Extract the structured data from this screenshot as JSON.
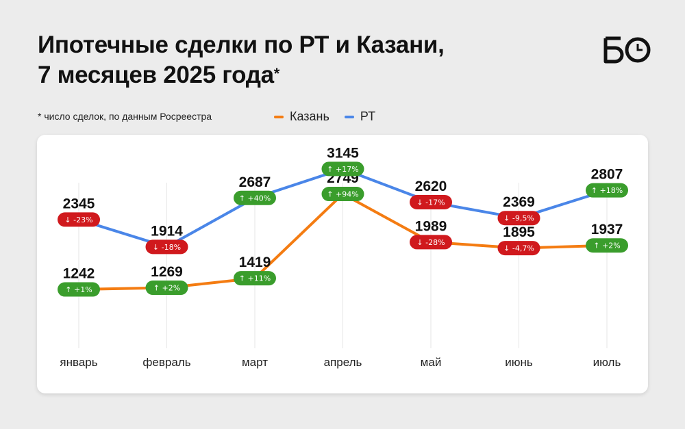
{
  "header": {
    "title_line1": "Ипотечные сделки по РТ и Казани,",
    "title_line2": "7 месяцев 2025 года",
    "title_mark": "*",
    "logo_text": "БО",
    "note": "* число сделок, по данным Росреестра"
  },
  "colors": {
    "kazan": "#f47c12",
    "rt": "#4a86e8",
    "up_badge": "#3a9d2c",
    "down_badge": "#d0191d",
    "gridline": "#e6e6e6"
  },
  "chart_data": {
    "type": "line",
    "title": "Ипотечные сделки по РТ и Казани, 7 месяцев 2025 года",
    "categories": [
      "январь",
      "февраль",
      "март",
      "апрель",
      "май",
      "июнь",
      "июль"
    ],
    "ylim": [
      0,
      3500
    ],
    "grid": "vertical",
    "legend_position": "top",
    "series": [
      {
        "name": "Казань",
        "color": "#f47c12",
        "values": [
          1242,
          1269,
          1419,
          2749,
          1989,
          1895,
          1937
        ],
        "changes": [
          "+1%",
          "+2%",
          "+11%",
          "+94%",
          "-28%",
          "-4,7%",
          "+2%"
        ],
        "directions": [
          "up",
          "up",
          "up",
          "up",
          "down",
          "down",
          "up"
        ]
      },
      {
        "name": "РТ",
        "color": "#4a86e8",
        "values": [
          2345,
          1914,
          2687,
          3145,
          2620,
          2369,
          2807
        ],
        "changes": [
          "-23%",
          "-18%",
          "+40%",
          "+17%",
          "-17%",
          "-9,5%",
          "+18%"
        ],
        "directions": [
          "down",
          "down",
          "up",
          "up",
          "down",
          "down",
          "up"
        ]
      }
    ]
  }
}
